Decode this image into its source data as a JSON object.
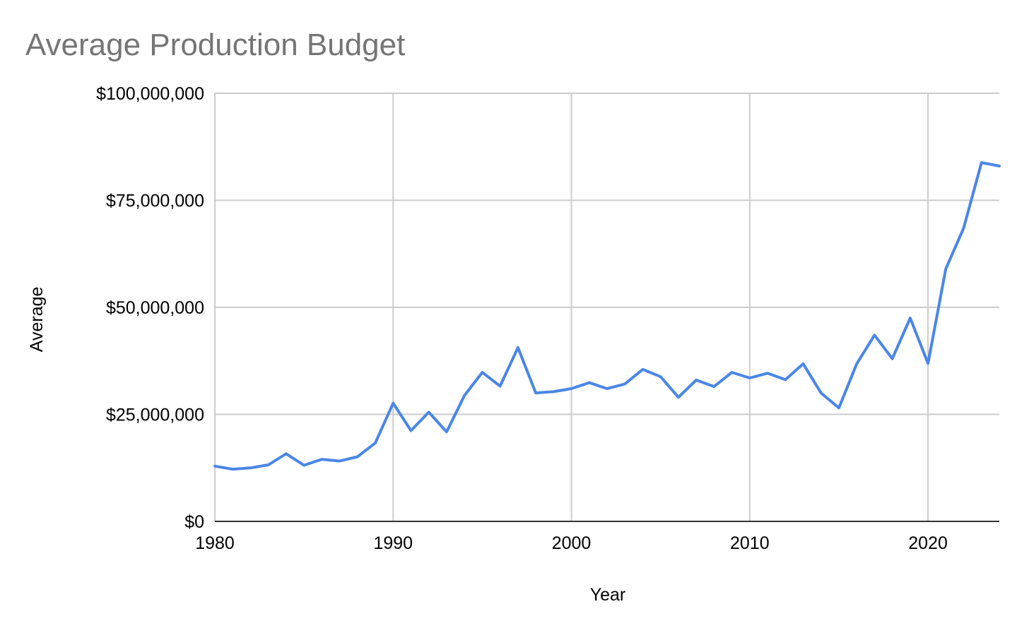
{
  "chart_data": {
    "type": "line",
    "title": "Average Production Budget",
    "xlabel": "Year",
    "ylabel": "Average",
    "xlim": [
      1980,
      2024
    ],
    "ylim": [
      0,
      100000000
    ],
    "x_ticks": [
      1980,
      1990,
      2000,
      2010,
      2020
    ],
    "x_tick_labels": [
      "1980",
      "1990",
      "2000",
      "2010",
      "2020"
    ],
    "y_ticks": [
      0,
      25000000,
      50000000,
      75000000,
      100000000
    ],
    "y_tick_labels": [
      "$0",
      "$25,000,000",
      "$50,000,000",
      "$75,000,000",
      "$100,000,000"
    ],
    "grid": true,
    "legend": "none",
    "colors": {
      "series": "#4a86e8",
      "grid": "#cccccc",
      "axis": "#333333",
      "title": "#757575"
    },
    "x": [
      1980,
      1981,
      1982,
      1983,
      1984,
      1985,
      1986,
      1987,
      1988,
      1989,
      1990,
      1991,
      1992,
      1993,
      1994,
      1995,
      1996,
      1997,
      1998,
      1999,
      2000,
      2001,
      2002,
      2003,
      2004,
      2005,
      2006,
      2007,
      2008,
      2009,
      2010,
      2011,
      2012,
      2013,
      2014,
      2015,
      2016,
      2017,
      2018,
      2019,
      2020,
      2021,
      2022,
      2023,
      2024
    ],
    "series": [
      {
        "values": [
          12900000,
          12200000,
          12500000,
          13200000,
          15800000,
          13100000,
          14500000,
          14100000,
          15100000,
          18300000,
          27600000,
          21200000,
          25500000,
          20900000,
          29400000,
          34800000,
          31600000,
          40600000,
          30000000,
          30300000,
          31000000,
          32400000,
          31000000,
          32100000,
          35500000,
          33800000,
          29000000,
          33000000,
          31500000,
          34800000,
          33500000,
          34600000,
          33100000,
          36800000,
          30000000,
          26500000,
          36800000,
          43500000,
          38000000,
          47500000,
          36900000,
          59000000,
          68500000,
          83800000,
          83000000
        ]
      }
    ]
  }
}
